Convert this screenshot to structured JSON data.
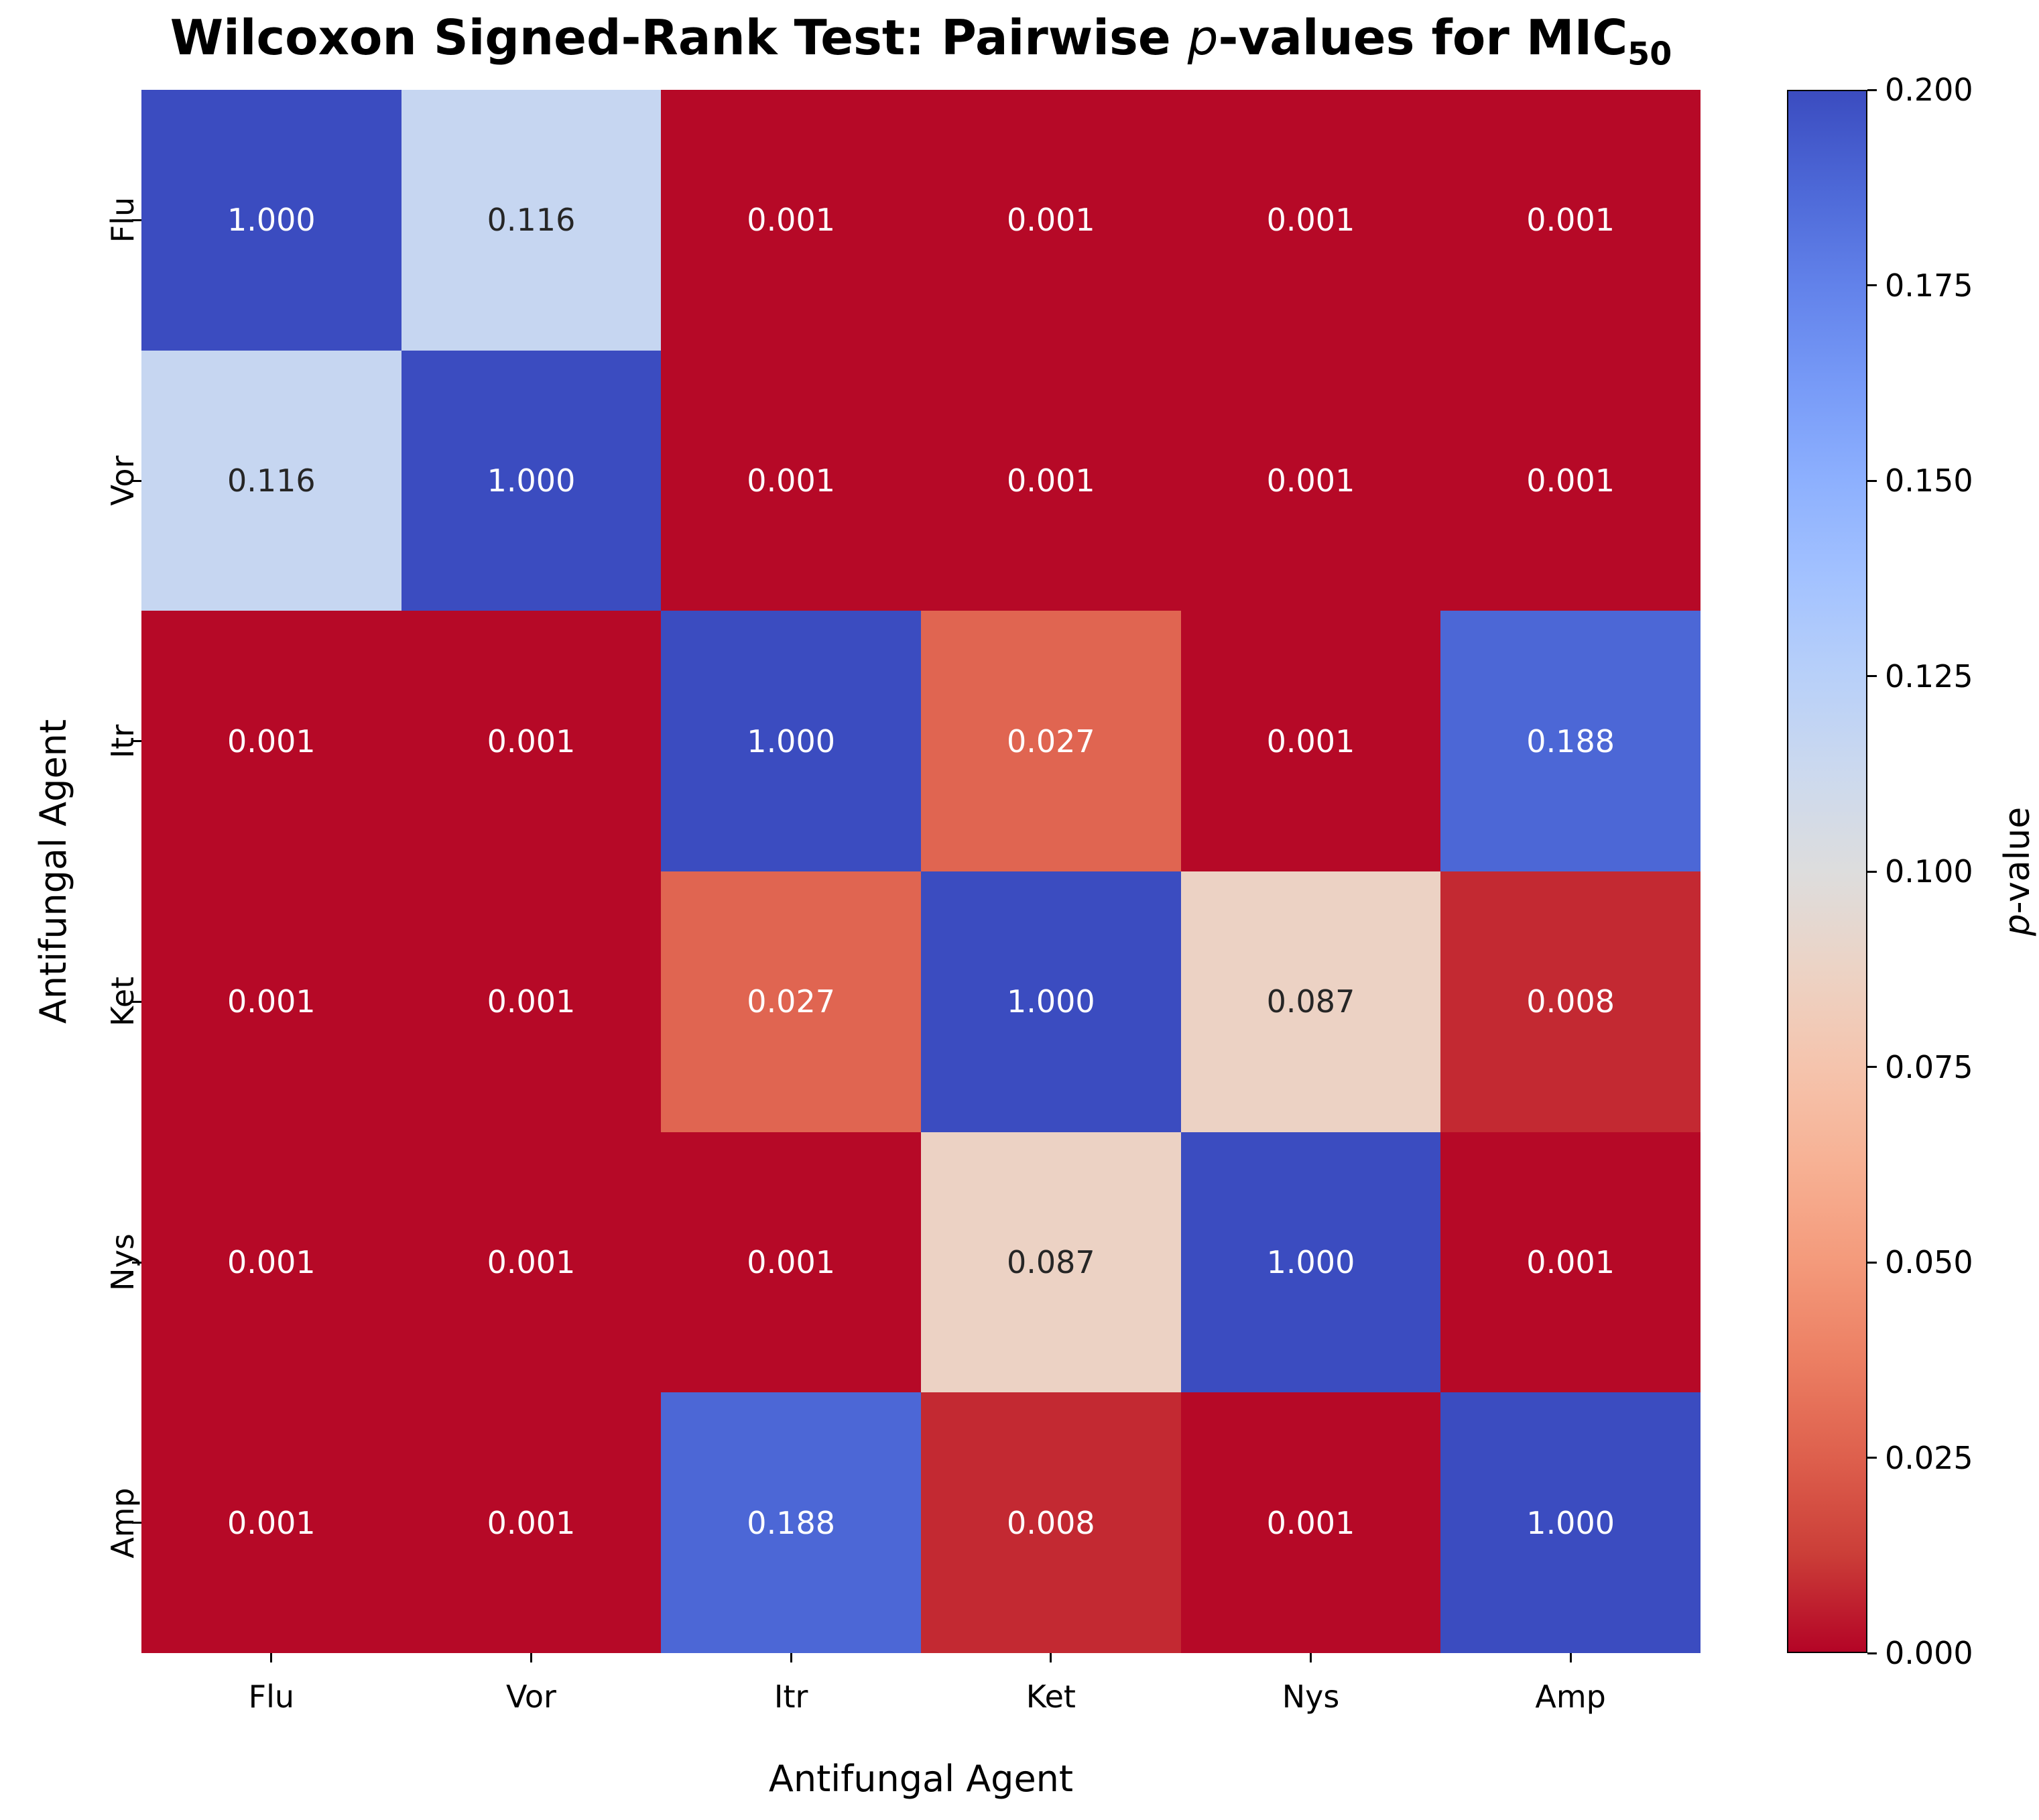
{
  "title": {
    "part1": "Wilcoxon Signed-Rank Test: Pairwise ",
    "p_italic": "p",
    "part2": "-values for MIC",
    "subscript": "50"
  },
  "axes": {
    "xlabel": "Antifungal Agent",
    "ylabel": "Antifungal Agent"
  },
  "colorbar": {
    "label_italic": "p",
    "label_rest": "-value",
    "tick_labels": [
      "0.200",
      "0.175",
      "0.150",
      "0.125",
      "0.100",
      "0.075",
      "0.050",
      "0.025",
      "0.000"
    ],
    "tick_values": [
      0.2,
      0.175,
      0.15,
      0.125,
      0.1,
      0.075,
      0.05,
      0.025,
      0.0
    ],
    "vmin": 0.0,
    "vmax": 0.2,
    "colormap": "coolwarm_r",
    "color_high": "#3b4cc0",
    "color_mid": "#dddddd",
    "color_low": "#b40426"
  },
  "chart_data": {
    "type": "heatmap",
    "title": "Wilcoxon Signed-Rank Test: Pairwise p-values for MIC50",
    "x_categories": [
      "Flu",
      "Vor",
      "Itr",
      "Ket",
      "Nys",
      "Amp"
    ],
    "y_categories": [
      "Flu",
      "Vor",
      "Itr",
      "Ket",
      "Nys",
      "Amp"
    ],
    "xlabel": "Antifungal Agent",
    "ylabel": "Antifungal Agent",
    "matrix": [
      [
        1.0,
        0.116,
        0.001,
        0.001,
        0.001,
        0.001
      ],
      [
        0.116,
        1.0,
        0.001,
        0.001,
        0.001,
        0.001
      ],
      [
        0.001,
        0.001,
        1.0,
        0.027,
        0.001,
        0.188
      ],
      [
        0.001,
        0.001,
        0.027,
        1.0,
        0.087,
        0.008
      ],
      [
        0.001,
        0.001,
        0.001,
        0.087,
        1.0,
        0.001
      ],
      [
        0.001,
        0.001,
        0.188,
        0.008,
        0.001,
        1.0
      ]
    ],
    "value_format": "3_decimals",
    "colormap": "coolwarm_r",
    "vmin": 0.0,
    "vmax": 0.2,
    "colorbar_label": "p-value",
    "legend_position": "right",
    "grid": false
  }
}
